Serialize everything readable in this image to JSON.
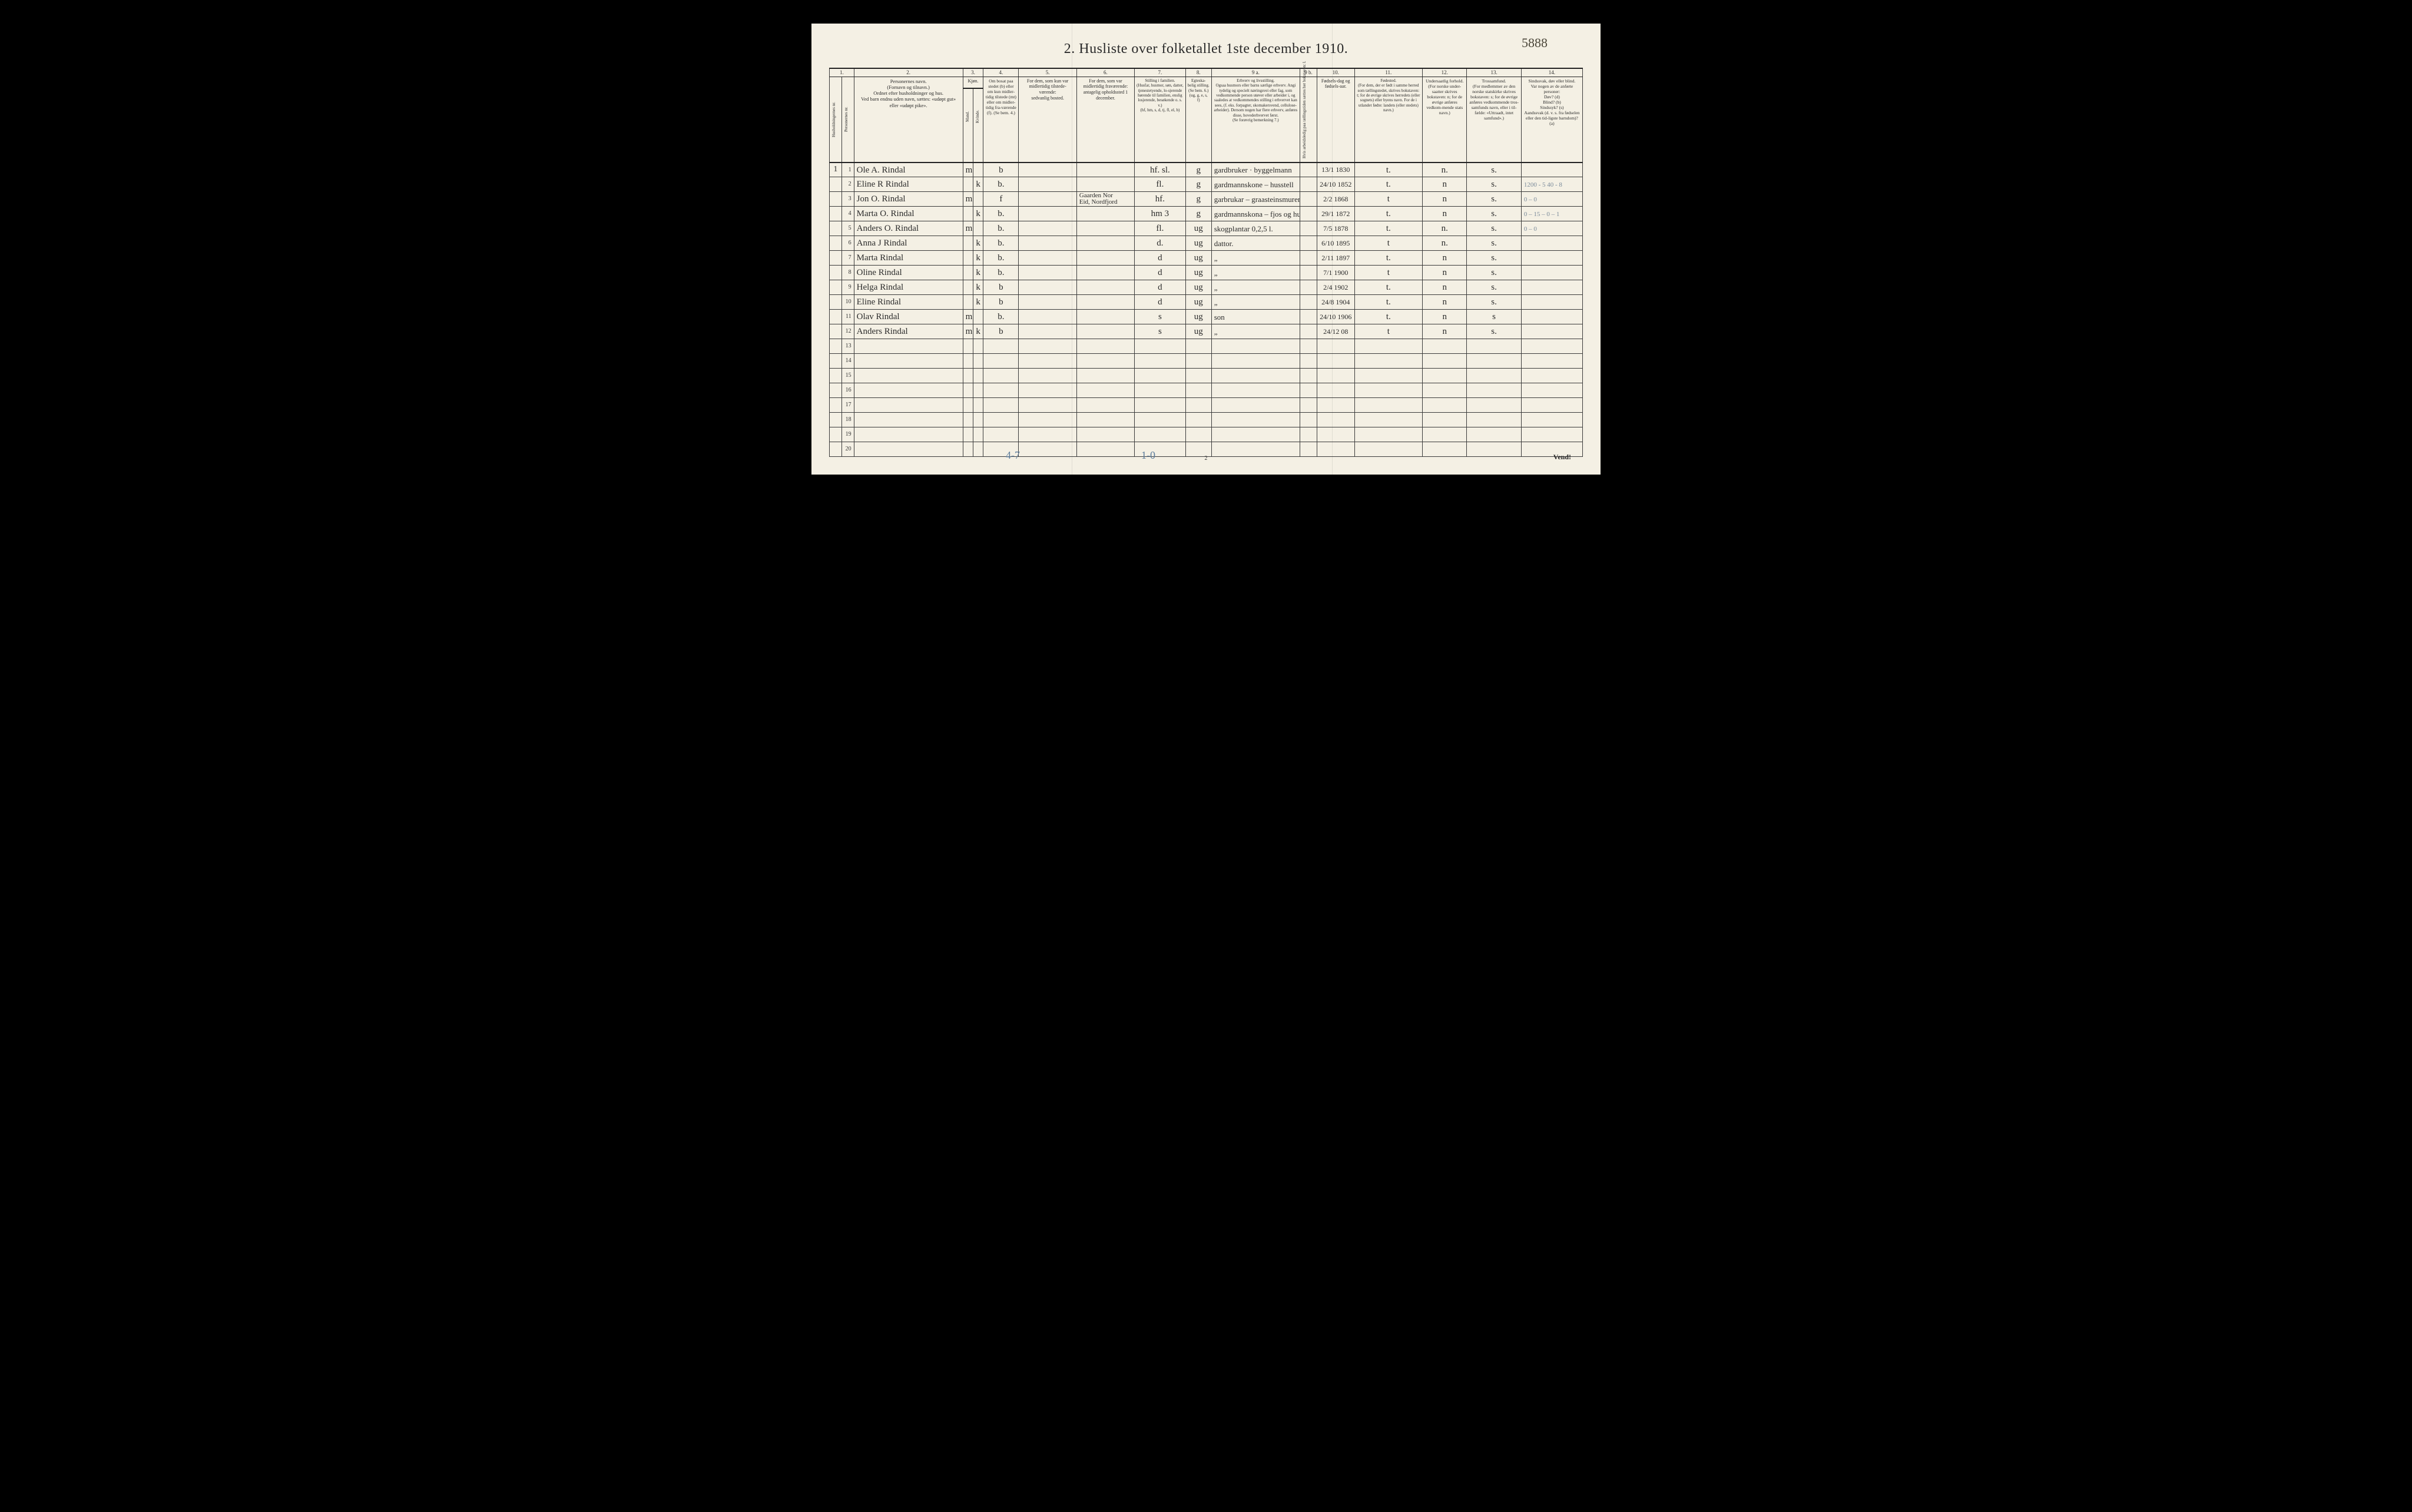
{
  "corner_number": "5888",
  "title": "2.  Husliste over folketallet 1ste december 1910.",
  "colnums": [
    "1.",
    "2.",
    "3.",
    "4.",
    "5.",
    "6.",
    "7.",
    "8.",
    "9 a.",
    "9 b.",
    "10.",
    "11.",
    "12.",
    "13.",
    "14."
  ],
  "headers": {
    "c1a": "Husholdningernes nr.",
    "c1b": "Personernes nr.",
    "c2": "Personernes navn.\n(Fornavn og tilnavn.)\nOrdnet efter husholdninger og hus.\nVed barn endnu uden navn, sættes: «udøpt gut» eller «udøpt pike».",
    "c3": "Kjøn.",
    "c3a": "Mand.",
    "c3b": "Kvinde.",
    "c3foot": "m.  k.",
    "c4": "Om bosat paa stedet (b) eller om kun midler-tidig tilstede (mt) eller om midler-tidig fra-værende (f). (Se bem. 4.)",
    "c5": "For dem, som kun var midlertidig tilstede-værende:\nsedvanlig bosted.",
    "c6": "For dem, som var midlertidig fraværende:\nantagelig opholdssted 1 december.",
    "c7": "Stilling i familien.\n(Husfar, husmor, søn, datter, tjenestetyende, lo-sjerende hørende til familien, enslig losjerende, besøkende o. s. v.)\n(hf, hm, s, d, tj, fl, el, b)",
    "c8": "Egteska-belig stilling.\n(Se bem. 6.)\n(ug, g, e, s, f)",
    "c9a": "Erhverv og livsstilling.\nOgsaa husmors eller barns særlige erhverv. Angi tydelig og specielt næringsvei eller fag, som vedkommende person utøver eller arbeider i, og saaledes at vedkommendes stilling i erhvervet kan sees, (f. eks. forpagter, skomakersvend, cellulose-arbeider). Dersom nogen har flere erhverv, anføres disse, hovederhvervet først.\n(Se forøvrig bemerkning 7.)",
    "c9b": "Hvis arbeidsledig paa tællingstiden sættes her bokstaven: l.",
    "c10": "Fødsels-dag og fødsels-aar.",
    "c11": "Fødested.\n(For dem, der er født i samme herred som tællingstedet, skrives bokstaven: t; for de øvrige skrives herredets (eller sognets) eller byens navn. For de i utlandet fødte: landets (eller stedets) navn.)",
    "c12": "Undersaatlig forhold.\n(For norske under-saatter skrives bokstaven: n; for de øvrige anføres vedkom-mende stats navn.)",
    "c13": "Trossamfund.\n(For medlemmer av den norske statskirke skrives bokstaven: s; for de øvrige anføres vedkommende tros-samfunds navn, eller i til-fælde: «Uttraadt, intet samfund».)",
    "c14": "Sindssvak, døv eller blind.\nVar nogen av de anførte personer:\nDøv? (d)\nBlind? (b)\nSindssyk? (s)\nAandssvak (d. v. s. fra fødselen eller den tid-ligste barndom)? (a)"
  },
  "rows": [
    {
      "hh": "1",
      "pn": "1",
      "name": "Ole A. Rindal",
      "m": "m",
      "k": "",
      "res": "b",
      "c5": "",
      "c6": "",
      "fam": "hf. sl.",
      "mar": "g",
      "occ": "gardbruker · byggelmann",
      "led": "",
      "dob": "13/1 1830",
      "birthplace": "t.",
      "nat": "n.",
      "faith": "s.",
      "note": ""
    },
    {
      "hh": "",
      "pn": "2",
      "name": "Eline R Rindal",
      "m": "",
      "k": "k",
      "res": "b.",
      "c5": "",
      "c6": "",
      "fam": "fl.",
      "mar": "g",
      "occ": "gardmannskone – husstell",
      "led": "",
      "dob": "24/10 1852",
      "birthplace": "t.",
      "nat": "n",
      "faith": "s.",
      "note": "1200 - 5 40 - 8"
    },
    {
      "hh": "",
      "pn": "3",
      "name": "Jon O. Rindal",
      "m": "m",
      "k": "",
      "res": "f",
      "c5": "",
      "c6": "Gaarden Nor\nEid, Nordfjord",
      "fam": "hf.",
      "mar": "g",
      "occ": "garbrukar – graasteinsmurer",
      "led": "",
      "dob": "2/2 1868",
      "birthplace": "t",
      "nat": "n",
      "faith": "s.",
      "note": "0 – 0"
    },
    {
      "hh": "",
      "pn": "4",
      "name": "Marta O. Rindal",
      "m": "",
      "k": "k",
      "res": "b.",
      "c5": "",
      "c6": "",
      "fam": "hm  3",
      "mar": "g",
      "occ": "gardmannskona – fjos og husstel",
      "led": "",
      "dob": "29/1 1872",
      "birthplace": "t.",
      "nat": "n",
      "faith": "s.",
      "note": "0 – 15 – 0 – 1"
    },
    {
      "hh": "",
      "pn": "5",
      "name": "Anders O. Rindal",
      "m": "m",
      "k": "",
      "res": "b.",
      "c5": "",
      "c6": "",
      "fam": "fl.",
      "mar": "ug",
      "occ": "skogplantar     0,2,5 l.",
      "led": "",
      "dob": "7/5 1878",
      "birthplace": "t.",
      "nat": "n.",
      "faith": "s.",
      "note": "0 – 0"
    },
    {
      "hh": "",
      "pn": "6",
      "name": "Anna J Rindal",
      "m": "",
      "k": "k",
      "res": "b.",
      "c5": "",
      "c6": "",
      "fam": "d.",
      "mar": "ug",
      "occ": "dattor.",
      "led": "",
      "dob": "6/10 1895",
      "birthplace": "t",
      "nat": "n.",
      "faith": "s.",
      "note": ""
    },
    {
      "hh": "",
      "pn": "7",
      "name": "Marta   Rindal",
      "m": "",
      "k": "k",
      "res": "b.",
      "c5": "",
      "c6": "",
      "fam": "d",
      "mar": "ug",
      "occ": "„",
      "led": "",
      "dob": "2/11 1897",
      "birthplace": "t.",
      "nat": "n",
      "faith": "s.",
      "note": ""
    },
    {
      "hh": "",
      "pn": "8",
      "name": "Oline   Rindal",
      "m": "",
      "k": "k",
      "res": "b.",
      "c5": "",
      "c6": "",
      "fam": "d",
      "mar": "ug",
      "occ": "„",
      "led": "",
      "dob": "7/1 1900",
      "birthplace": "t",
      "nat": "n",
      "faith": "s.",
      "note": ""
    },
    {
      "hh": "",
      "pn": "9",
      "name": "Helga   Rindal",
      "m": "",
      "k": "k",
      "res": "b",
      "c5": "",
      "c6": "",
      "fam": "d",
      "mar": "ug",
      "occ": "„",
      "led": "",
      "dob": "2/4 1902",
      "birthplace": "t.",
      "nat": "n",
      "faith": "s.",
      "note": ""
    },
    {
      "hh": "",
      "pn": "10",
      "name": "Eline   Rindal",
      "m": "",
      "k": "k",
      "res": "b",
      "c5": "",
      "c6": "",
      "fam": "d",
      "mar": "ug",
      "occ": "„",
      "led": "",
      "dob": "24/8 1904",
      "birthplace": "t.",
      "nat": "n",
      "faith": "s.",
      "note": ""
    },
    {
      "hh": "",
      "pn": "11",
      "name": "Olav   Rindal",
      "m": "m",
      "k": "",
      "res": "b.",
      "c5": "",
      "c6": "",
      "fam": "s",
      "mar": "ug",
      "occ": "son",
      "led": "",
      "dob": "24/10 1906",
      "birthplace": "t.",
      "nat": "n",
      "faith": "s",
      "note": ""
    },
    {
      "hh": "",
      "pn": "12",
      "name": "Anders Rindal",
      "m": "m",
      "k": "k",
      "res": "b",
      "c5": "",
      "c6": "",
      "fam": "s",
      "mar": "ug",
      "occ": "„",
      "led": "",
      "dob": "24/12 08",
      "birthplace": "t",
      "nat": "n",
      "faith": "s.",
      "note": ""
    }
  ],
  "empty_rows": [
    13,
    14,
    15,
    16,
    17,
    18,
    19,
    20
  ],
  "footnote_left": "4-7",
  "footnote_mid": "1-0",
  "page_number": "2",
  "vend": "Vend!",
  "colors": {
    "page_bg": "#f4f0e4",
    "ink": "#2a2a2a",
    "pencil": "#5a7a9a",
    "border": "#3a3a3a"
  },
  "colgroup_widths_pct": [
    1.8,
    1.8,
    16,
    1.5,
    1.5,
    5.2,
    8.5,
    8.5,
    7.5,
    3.8,
    13,
    2.5,
    5.5,
    10,
    6.5,
    8,
    9
  ]
}
